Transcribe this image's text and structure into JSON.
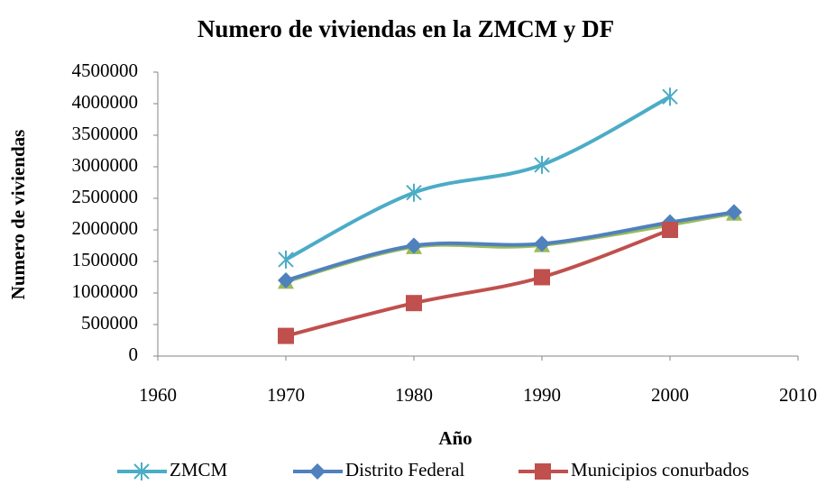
{
  "chart_data": {
    "type": "line",
    "title": "Numero de viviendas en la ZMCM y DF",
    "xlabel": "Año",
    "ylabel": "Numero  de viviendas",
    "xlim": [
      1960,
      2010
    ],
    "xticks": [
      1960,
      1970,
      1980,
      1990,
      2000,
      2010
    ],
    "ylim": [
      0,
      4500000
    ],
    "yticks": [
      0,
      500000,
      1000000,
      1500000,
      2000000,
      2500000,
      3000000,
      3500000,
      4000000,
      4500000
    ],
    "smooth": true,
    "grid": false,
    "series": [
      {
        "color": "#9bbb59",
        "marker": "triangle",
        "x": [
          1970,
          1980,
          1990,
          2005
        ],
        "values": [
          1180000,
          1730000,
          1760000,
          2260000
        ]
      },
      {
        "name": "ZMCM",
        "color": "#4bacc6",
        "marker": "star",
        "x": [
          1970,
          1980,
          1990,
          2000
        ],
        "values": [
          1530000,
          2590000,
          3030000,
          4110000
        ]
      },
      {
        "name": "Distrito Federal",
        "color": "#4f81bd",
        "marker": "diamond",
        "x": [
          1970,
          1980,
          1990,
          2000,
          2005
        ],
        "values": [
          1200000,
          1750000,
          1780000,
          2120000,
          2280000
        ]
      },
      {
        "name": "Municipios conurbados",
        "color": "#c0504d",
        "marker": "square",
        "x": [
          1970,
          1980,
          1990,
          2000
        ],
        "values": [
          320000,
          840000,
          1250000,
          2000000
        ]
      }
    ]
  }
}
